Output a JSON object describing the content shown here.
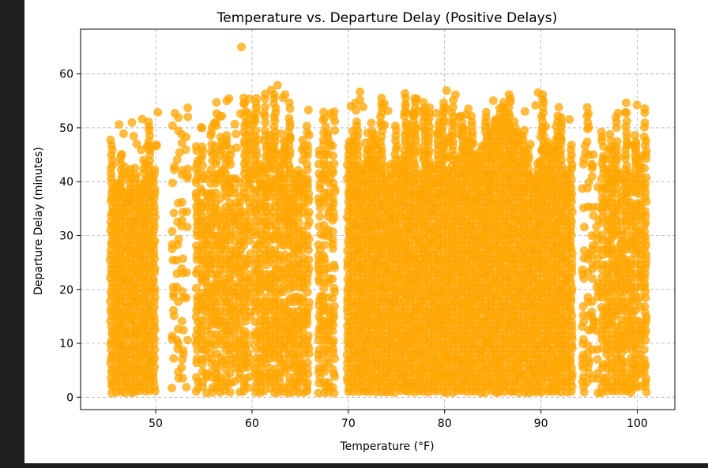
{
  "chart_data": {
    "type": "scatter",
    "title": "Temperature vs. Departure Delay (Positive Delays)",
    "xlabel": "Temperature (°F)",
    "ylabel": "Departure Delay (minutes)",
    "xlim": [
      42.2,
      103.9
    ],
    "ylim": [
      -2.3,
      68.3
    ],
    "xticks": [
      50,
      60,
      70,
      80,
      90,
      100
    ],
    "yticks": [
      0,
      10,
      20,
      30,
      40,
      50,
      60
    ],
    "grid": true,
    "grid_style": "dashed",
    "marker_color": "#ffa500",
    "marker_alpha": 0.75,
    "x_range_observed": [
      45.4,
      101.0
    ],
    "y_range_observed": [
      1,
      65
    ],
    "clusters": [
      {
        "x": [
          45.4,
          50.3
        ],
        "y": [
          1,
          53
        ],
        "density": 1.0
      },
      {
        "x": [
          51.8,
          53.6
        ],
        "y": [
          1,
          55
        ],
        "density": 0.25
      },
      {
        "x": [
          54.3,
          60.2
        ],
        "y": [
          1,
          56
        ],
        "density": 0.8
      },
      {
        "x": [
          60.4,
          66.1
        ],
        "y": [
          1,
          58
        ],
        "density": 0.85
      },
      {
        "x": [
          67.0,
          68.9
        ],
        "y": [
          1,
          57
        ],
        "density": 0.7
      },
      {
        "x": [
          70.0,
          93.3
        ],
        "y": [
          1,
          57
        ],
        "density": 1.0
      },
      {
        "x": [
          94.4,
          96.1
        ],
        "y": [
          1,
          55
        ],
        "density": 0.4
      },
      {
        "x": [
          96.4,
          101.0
        ],
        "y": [
          1,
          55
        ],
        "density": 0.85
      }
    ],
    "outliers": [
      {
        "x": 58.9,
        "y": 65
      }
    ]
  }
}
